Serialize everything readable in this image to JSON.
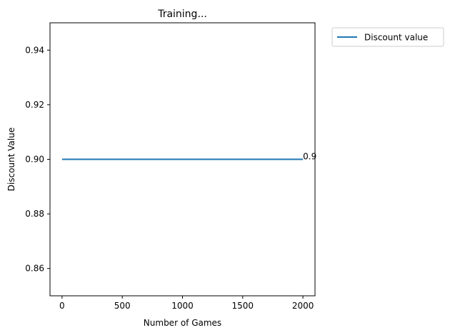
{
  "chart_data": {
    "type": "line",
    "title": "Training...",
    "xlabel": "Number of Games",
    "ylabel": "Discount Value",
    "xlim": [
      -100,
      2100
    ],
    "ylim": [
      0.85,
      0.95
    ],
    "x_ticks": [
      0,
      500,
      1000,
      1500,
      2000
    ],
    "x_tick_labels": [
      "0",
      "500",
      "1000",
      "1500",
      "2000"
    ],
    "y_ticks": [
      0.86,
      0.88,
      0.9,
      0.92,
      0.94
    ],
    "y_tick_labels": [
      "0.86",
      "0.88",
      "0.90",
      "0.92",
      "0.94"
    ],
    "grid": false,
    "legend_position": "outside top-right",
    "series": [
      {
        "name": "Discount value",
        "color": "#1f77b4",
        "x": [
          0,
          2000
        ],
        "y": [
          0.9,
          0.9
        ]
      }
    ],
    "annotations": [
      {
        "text": "0.9",
        "x": 2000,
        "y": 0.9
      }
    ]
  }
}
